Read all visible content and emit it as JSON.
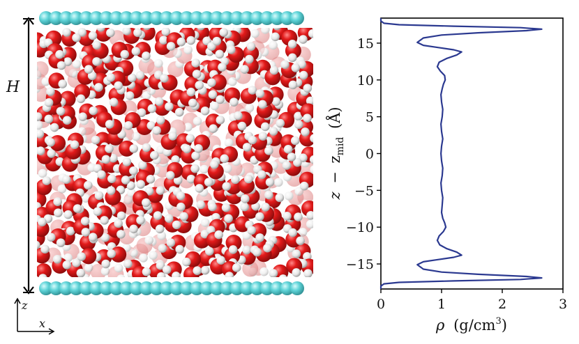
{
  "figure": {
    "height_label": "H",
    "axis_z_label": "z",
    "axis_x_label": "x",
    "colors": {
      "wall": "#5fd4d8",
      "oxygen": "#d7191c",
      "hydrogen": "#f2f2f2",
      "line": "#2b3990"
    }
  },
  "chart_data": {
    "type": "line",
    "xlabel": "ρ (g/cm³)",
    "xlabel_parts": {
      "symbol": "ρ",
      "unit": "(g/cm",
      "exp": "3",
      "close": ")"
    },
    "ylabel": "z − z_mid (Å)",
    "ylabel_parts": {
      "z": "z",
      "minus": "−",
      "zsym": "z",
      "sub": "mid",
      "unit": "(Å)"
    },
    "xlim": [
      0,
      3
    ],
    "ylim": [
      -18.4,
      18.4
    ],
    "xticks": [
      0,
      1,
      2,
      3
    ],
    "yticks": [
      -15,
      -10,
      -5,
      0,
      5,
      10,
      15
    ],
    "grid": false,
    "series": [
      {
        "color": "#2b3990",
        "x": [
          0,
          0.0,
          0.05,
          0.3,
          1.2,
          2.3,
          2.65,
          2.4,
          1.6,
          1.0,
          0.7,
          0.6,
          0.7,
          0.95,
          1.2,
          1.33,
          1.25,
          1.08,
          0.97,
          0.93,
          0.96,
          1.03,
          1.07,
          1.05,
          1.02,
          1.0,
          1.01,
          1.02,
          1.0,
          0.99,
          1.01,
          1.02,
          1.0,
          0.99,
          1.0,
          1.02,
          1.0,
          0.99,
          1.01,
          1.02,
          1.0,
          0.99,
          1.01,
          1.03,
          1.06,
          1.05,
          0.98,
          0.93,
          0.96,
          1.08,
          1.25,
          1.33,
          1.2,
          0.95,
          0.7,
          0.6,
          0.7,
          1.0,
          1.6,
          2.4,
          2.65,
          2.3,
          1.2,
          0.3,
          0.05,
          0.0,
          0
        ],
        "y": [
          -18.4,
          -18.0,
          -17.7,
          -17.5,
          -17.3,
          -17.1,
          -16.9,
          -16.7,
          -16.4,
          -16.1,
          -15.7,
          -15.1,
          -14.7,
          -14.4,
          -14.1,
          -13.8,
          -13.4,
          -12.9,
          -12.4,
          -11.8,
          -11.2,
          -10.6,
          -10.0,
          -9.4,
          -8.8,
          -8.0,
          -7.0,
          -6.0,
          -5.0,
          -4.0,
          -3.0,
          -2.0,
          -1.0,
          0.0,
          1.0,
          2.0,
          3.0,
          4.0,
          5.0,
          6.0,
          7.0,
          8.0,
          8.8,
          9.4,
          10.0,
          10.6,
          11.2,
          11.8,
          12.4,
          12.9,
          13.4,
          13.8,
          14.1,
          14.4,
          14.7,
          15.1,
          15.7,
          16.1,
          16.4,
          16.7,
          16.9,
          17.1,
          17.3,
          17.5,
          17.7,
          18.0,
          18.4
        ]
      }
    ]
  }
}
